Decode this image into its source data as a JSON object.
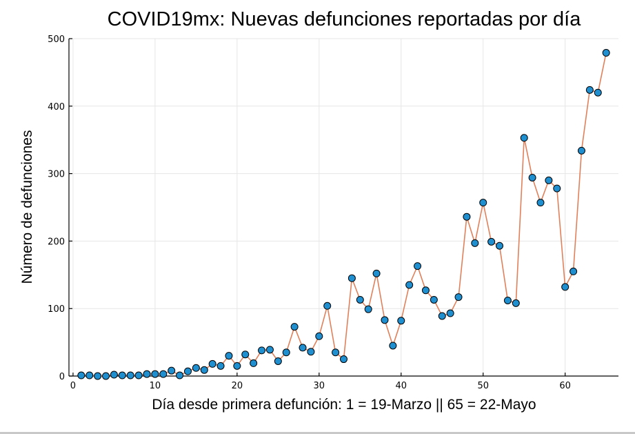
{
  "chart_data": {
    "type": "line",
    "title": "COVID19mx: Nuevas defunciones reportadas por día",
    "xlabel": "Día desde primera defunción: 1 = 19-Marzo || 65 = 22-Mayo",
    "ylabel": "Número de defunciones",
    "xlim": [
      -0.5,
      66.5
    ],
    "ylim": [
      0,
      500
    ],
    "xticks": [
      0,
      10,
      20,
      30,
      40,
      50,
      60
    ],
    "yticks": [
      0,
      100,
      200,
      300,
      400,
      500
    ],
    "grid": true,
    "legend": "none",
    "colors": {
      "line": "#e0805a",
      "marker": "#1f8fd0",
      "marker_edge": "#000000"
    },
    "series": [
      {
        "x": [
          1,
          2,
          3,
          4,
          5,
          6,
          7,
          8,
          9,
          10,
          11,
          12,
          13,
          14,
          15,
          16,
          17,
          18,
          19,
          20,
          21,
          22,
          23,
          24,
          25,
          26,
          27,
          28,
          29,
          30,
          31,
          32,
          33,
          34,
          35,
          36,
          37,
          38,
          39,
          40,
          41,
          42,
          43,
          44,
          45,
          46,
          47,
          48,
          49,
          50,
          51,
          52,
          53,
          54,
          55,
          56,
          57,
          58,
          59,
          60,
          61,
          62,
          63,
          64,
          65
        ],
        "y": [
          1,
          1,
          0,
          0,
          2,
          1,
          1,
          1,
          3,
          3,
          3,
          8,
          1,
          7,
          12,
          9,
          18,
          15,
          30,
          15,
          32,
          19,
          38,
          39,
          22,
          35,
          73,
          42,
          36,
          59,
          104,
          35,
          25,
          145,
          113,
          99,
          152,
          83,
          45,
          82,
          135,
          163,
          127,
          113,
          89,
          93,
          117,
          236,
          197,
          257,
          199,
          193,
          112,
          108,
          353,
          294,
          257,
          290,
          278,
          132,
          155,
          334,
          424,
          420,
          479
        ]
      }
    ]
  }
}
